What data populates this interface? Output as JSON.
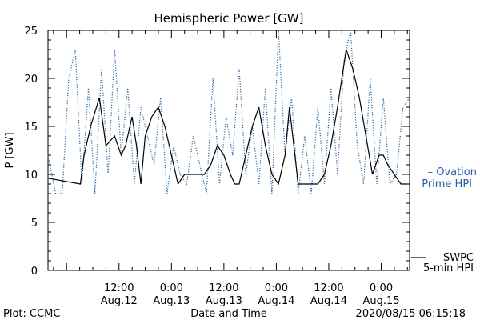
{
  "chart_data": {
    "type": "line",
    "title": "Hemispheric Power [GW]",
    "xlabel": "Date and Time",
    "ylabel": "P [GW]",
    "ylim": [
      0,
      25
    ],
    "y_ticks": [
      0,
      5,
      10,
      15,
      20,
      25
    ],
    "x_range": [
      "2020-08-11T19:45",
      "2020-08-15T06:30"
    ],
    "x_ticks": [
      {
        "t": "2020-08-12T12:00",
        "time": "12:00",
        "date": "Aug.12"
      },
      {
        "t": "2020-08-13T00:00",
        "time": "0:00",
        "date": "Aug.13"
      },
      {
        "t": "2020-08-13T12:00",
        "time": "12:00",
        "date": "Aug.13"
      },
      {
        "t": "2020-08-14T00:00",
        "time": "0:00",
        "date": "Aug.14"
      },
      {
        "t": "2020-08-14T12:00",
        "time": "12:00",
        "date": "Aug.14"
      },
      {
        "t": "2020-08-15T00:00",
        "time": "0:00",
        "date": "Aug.15"
      }
    ],
    "grid": false,
    "legend_position": "right",
    "series": [
      {
        "name": "SWPC 5-min HPI",
        "legend_lines": [
          "SWPC",
          "5-min HPI"
        ],
        "color": "#000000",
        "style": "solid",
        "x": [
          "2020-08-11T19:45",
          "2020-08-12T03:10",
          "2020-08-12T04:00",
          "2020-08-12T05:30",
          "2020-08-12T07:30",
          "2020-08-12T09:00",
          "2020-08-12T11:00",
          "2020-08-12T12:30",
          "2020-08-12T13:30",
          "2020-08-12T15:00",
          "2020-08-12T16:00",
          "2020-08-12T17:00",
          "2020-08-12T18:00",
          "2020-08-12T19:30",
          "2020-08-12T21:00",
          "2020-08-12T22:30",
          "2020-08-13T00:00",
          "2020-08-13T01:30",
          "2020-08-13T03:00",
          "2020-08-13T04:30",
          "2020-08-13T06:00",
          "2020-08-13T07:30",
          "2020-08-13T09:00",
          "2020-08-13T10:30",
          "2020-08-13T12:00",
          "2020-08-13T13:30",
          "2020-08-13T14:30",
          "2020-08-13T15:30",
          "2020-08-13T17:00",
          "2020-08-13T18:30",
          "2020-08-13T20:00",
          "2020-08-13T21:30",
          "2020-08-13T23:00",
          "2020-08-14T00:30",
          "2020-08-14T02:00",
          "2020-08-14T03:00",
          "2020-08-14T04:00",
          "2020-08-14T05:00",
          "2020-08-14T06:30",
          "2020-08-14T08:00",
          "2020-08-14T09:30",
          "2020-08-14T11:00",
          "2020-08-14T12:30",
          "2020-08-14T14:00",
          "2020-08-14T15:00",
          "2020-08-14T16:00",
          "2020-08-14T17:30",
          "2020-08-14T19:00",
          "2020-08-14T20:30",
          "2020-08-14T22:00",
          "2020-08-14T23:30",
          "2020-08-15T00:30",
          "2020-08-15T01:30",
          "2020-08-15T03:00",
          "2020-08-15T04:30",
          "2020-08-15T06:00"
        ],
        "values": [
          9.6,
          9,
          12,
          15,
          18,
          13,
          14,
          12,
          13,
          16,
          13,
          9,
          14,
          16,
          17,
          15,
          12,
          9,
          10,
          10,
          10,
          10,
          11,
          13,
          12,
          10,
          9,
          9,
          12,
          15,
          17,
          13,
          10,
          9,
          12,
          17,
          13,
          9,
          9,
          9,
          9,
          10,
          13,
          17,
          20,
          23,
          21,
          18,
          14,
          10,
          12,
          12,
          11,
          10,
          9,
          9
        ]
      },
      {
        "name": "Ovation Prime HPI",
        "legend_lines": [
          "– Ovation",
          "Prime HPI"
        ],
        "color": "#1f5fbf",
        "style": "dotted",
        "x": [
          "2020-08-11T19:45",
          "2020-08-11T21:30",
          "2020-08-11T23:00",
          "2020-08-12T00:30",
          "2020-08-12T02:00",
          "2020-08-12T03:30",
          "2020-08-12T05:00",
          "2020-08-12T06:30",
          "2020-08-12T08:00",
          "2020-08-12T09:30",
          "2020-08-12T11:00",
          "2020-08-12T12:30",
          "2020-08-12T14:00",
          "2020-08-12T15:30",
          "2020-08-12T17:00",
          "2020-08-12T18:30",
          "2020-08-12T20:00",
          "2020-08-12T21:30",
          "2020-08-12T23:00",
          "2020-08-13T00:30",
          "2020-08-13T02:00",
          "2020-08-13T03:30",
          "2020-08-13T05:00",
          "2020-08-13T06:30",
          "2020-08-13T08:00",
          "2020-08-13T09:30",
          "2020-08-13T11:00",
          "2020-08-13T12:30",
          "2020-08-13T14:00",
          "2020-08-13T15:30",
          "2020-08-13T17:00",
          "2020-08-13T18:30",
          "2020-08-13T20:00",
          "2020-08-13T21:30",
          "2020-08-13T23:00",
          "2020-08-14T00:30",
          "2020-08-14T02:00",
          "2020-08-14T03:30",
          "2020-08-14T05:00",
          "2020-08-14T06:30",
          "2020-08-14T08:00",
          "2020-08-14T09:30",
          "2020-08-14T11:00",
          "2020-08-14T12:30",
          "2020-08-14T14:00",
          "2020-08-14T15:30",
          "2020-08-14T17:00",
          "2020-08-14T18:30",
          "2020-08-14T20:00",
          "2020-08-14T21:30",
          "2020-08-14T23:00",
          "2020-08-15T00:30",
          "2020-08-15T02:00",
          "2020-08-15T03:30",
          "2020-08-15T05:00",
          "2020-08-15T06:30"
        ],
        "values": [
          12,
          8,
          8,
          20,
          23,
          9,
          19,
          8,
          21,
          10,
          23,
          12,
          19,
          9,
          17,
          14,
          11,
          18,
          8,
          13,
          10,
          9,
          14,
          11,
          8,
          20,
          9,
          16,
          12,
          21,
          10,
          15,
          9,
          19,
          8,
          25,
          12,
          18,
          8,
          14,
          8,
          17,
          9,
          19,
          10,
          22,
          25,
          13,
          9,
          20,
          9,
          18,
          9,
          10,
          17,
          18
        ]
      }
    ]
  },
  "footer": {
    "plot_credit": "Plot: CCMC",
    "timestamp": "2020/08/15 06:15:18"
  }
}
